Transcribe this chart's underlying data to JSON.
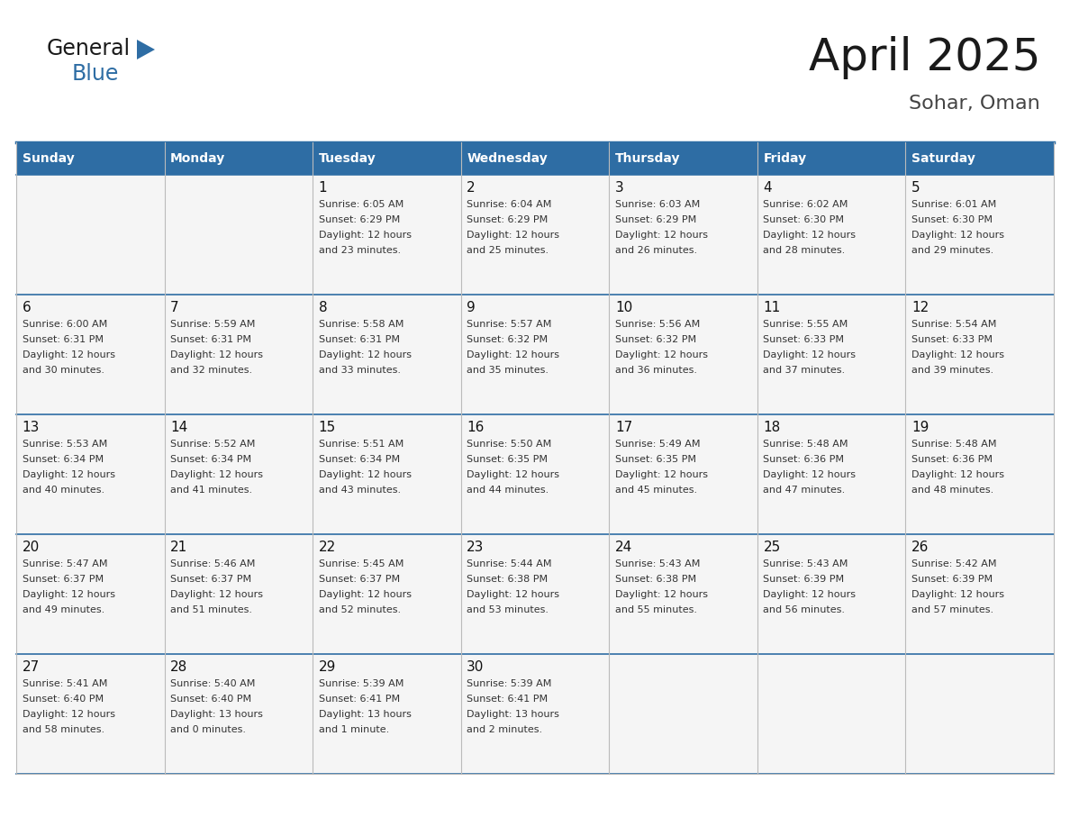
{
  "title": "April 2025",
  "subtitle": "Sohar, Oman",
  "header_bg": "#2E6DA4",
  "header_text_color": "#FFFFFF",
  "cell_bg": "#F5F5F5",
  "cell_text_color": "#333333",
  "border_color": "#2E6DA4",
  "grid_color": "#BBBBBB",
  "days_of_week": [
    "Sunday",
    "Monday",
    "Tuesday",
    "Wednesday",
    "Thursday",
    "Friday",
    "Saturday"
  ],
  "weeks": [
    [
      {
        "day": "",
        "info": ""
      },
      {
        "day": "",
        "info": ""
      },
      {
        "day": "1",
        "info": "Sunrise: 6:05 AM\nSunset: 6:29 PM\nDaylight: 12 hours\nand 23 minutes."
      },
      {
        "day": "2",
        "info": "Sunrise: 6:04 AM\nSunset: 6:29 PM\nDaylight: 12 hours\nand 25 minutes."
      },
      {
        "day": "3",
        "info": "Sunrise: 6:03 AM\nSunset: 6:29 PM\nDaylight: 12 hours\nand 26 minutes."
      },
      {
        "day": "4",
        "info": "Sunrise: 6:02 AM\nSunset: 6:30 PM\nDaylight: 12 hours\nand 28 minutes."
      },
      {
        "day": "5",
        "info": "Sunrise: 6:01 AM\nSunset: 6:30 PM\nDaylight: 12 hours\nand 29 minutes."
      }
    ],
    [
      {
        "day": "6",
        "info": "Sunrise: 6:00 AM\nSunset: 6:31 PM\nDaylight: 12 hours\nand 30 minutes."
      },
      {
        "day": "7",
        "info": "Sunrise: 5:59 AM\nSunset: 6:31 PM\nDaylight: 12 hours\nand 32 minutes."
      },
      {
        "day": "8",
        "info": "Sunrise: 5:58 AM\nSunset: 6:31 PM\nDaylight: 12 hours\nand 33 minutes."
      },
      {
        "day": "9",
        "info": "Sunrise: 5:57 AM\nSunset: 6:32 PM\nDaylight: 12 hours\nand 35 minutes."
      },
      {
        "day": "10",
        "info": "Sunrise: 5:56 AM\nSunset: 6:32 PM\nDaylight: 12 hours\nand 36 minutes."
      },
      {
        "day": "11",
        "info": "Sunrise: 5:55 AM\nSunset: 6:33 PM\nDaylight: 12 hours\nand 37 minutes."
      },
      {
        "day": "12",
        "info": "Sunrise: 5:54 AM\nSunset: 6:33 PM\nDaylight: 12 hours\nand 39 minutes."
      }
    ],
    [
      {
        "day": "13",
        "info": "Sunrise: 5:53 AM\nSunset: 6:34 PM\nDaylight: 12 hours\nand 40 minutes."
      },
      {
        "day": "14",
        "info": "Sunrise: 5:52 AM\nSunset: 6:34 PM\nDaylight: 12 hours\nand 41 minutes."
      },
      {
        "day": "15",
        "info": "Sunrise: 5:51 AM\nSunset: 6:34 PM\nDaylight: 12 hours\nand 43 minutes."
      },
      {
        "day": "16",
        "info": "Sunrise: 5:50 AM\nSunset: 6:35 PM\nDaylight: 12 hours\nand 44 minutes."
      },
      {
        "day": "17",
        "info": "Sunrise: 5:49 AM\nSunset: 6:35 PM\nDaylight: 12 hours\nand 45 minutes."
      },
      {
        "day": "18",
        "info": "Sunrise: 5:48 AM\nSunset: 6:36 PM\nDaylight: 12 hours\nand 47 minutes."
      },
      {
        "day": "19",
        "info": "Sunrise: 5:48 AM\nSunset: 6:36 PM\nDaylight: 12 hours\nand 48 minutes."
      }
    ],
    [
      {
        "day": "20",
        "info": "Sunrise: 5:47 AM\nSunset: 6:37 PM\nDaylight: 12 hours\nand 49 minutes."
      },
      {
        "day": "21",
        "info": "Sunrise: 5:46 AM\nSunset: 6:37 PM\nDaylight: 12 hours\nand 51 minutes."
      },
      {
        "day": "22",
        "info": "Sunrise: 5:45 AM\nSunset: 6:37 PM\nDaylight: 12 hours\nand 52 minutes."
      },
      {
        "day": "23",
        "info": "Sunrise: 5:44 AM\nSunset: 6:38 PM\nDaylight: 12 hours\nand 53 minutes."
      },
      {
        "day": "24",
        "info": "Sunrise: 5:43 AM\nSunset: 6:38 PM\nDaylight: 12 hours\nand 55 minutes."
      },
      {
        "day": "25",
        "info": "Sunrise: 5:43 AM\nSunset: 6:39 PM\nDaylight: 12 hours\nand 56 minutes."
      },
      {
        "day": "26",
        "info": "Sunrise: 5:42 AM\nSunset: 6:39 PM\nDaylight: 12 hours\nand 57 minutes."
      }
    ],
    [
      {
        "day": "27",
        "info": "Sunrise: 5:41 AM\nSunset: 6:40 PM\nDaylight: 12 hours\nand 58 minutes."
      },
      {
        "day": "28",
        "info": "Sunrise: 5:40 AM\nSunset: 6:40 PM\nDaylight: 13 hours\nand 0 minutes."
      },
      {
        "day": "29",
        "info": "Sunrise: 5:39 AM\nSunset: 6:41 PM\nDaylight: 13 hours\nand 1 minute."
      },
      {
        "day": "30",
        "info": "Sunrise: 5:39 AM\nSunset: 6:41 PM\nDaylight: 13 hours\nand 2 minutes."
      },
      {
        "day": "",
        "info": ""
      },
      {
        "day": "",
        "info": ""
      },
      {
        "day": "",
        "info": ""
      }
    ]
  ],
  "logo_text_general": "General",
  "logo_text_blue": "Blue",
  "logo_color_general": "#1a1a1a",
  "logo_color_blue": "#2E6DA4",
  "logo_triangle_color": "#2E6DA4",
  "title_fontsize": 36,
  "subtitle_fontsize": 16,
  "header_fontsize": 10,
  "day_num_fontsize": 11,
  "info_fontsize": 8
}
